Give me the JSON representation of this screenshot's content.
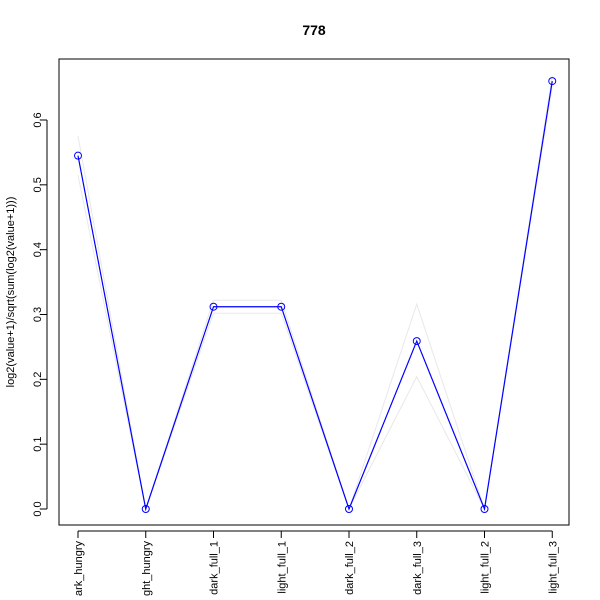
{
  "chart_data": {
    "type": "line",
    "title": "778",
    "xlabel": "",
    "ylabel": "log2(value+1)/sqrt(sum(log2(value+1)))",
    "categories": [
      "ark_hungry",
      "ght_hungry",
      "dark_full_1",
      "light_full_1",
      "dark_full_2",
      "dark_full_3",
      "light_full_2",
      "light_full_3"
    ],
    "ylim": [
      0.0,
      0.66
    ],
    "yticks": [
      0.0,
      0.1,
      0.2,
      0.3,
      0.4,
      0.5,
      0.6
    ],
    "ytick_labels": [
      "0.0",
      "0.1",
      "0.2",
      "0.3",
      "0.4",
      "0.5",
      "0.6"
    ],
    "grid": false,
    "legend": "none",
    "series": [
      {
        "values": [
          0.545,
          0.0,
          0.312,
          0.312,
          0.0,
          0.259,
          0.0,
          0.66
        ],
        "color": "#0000ff",
        "marker": "open-circle"
      }
    ],
    "bands": [
      {
        "values": [
          0.575,
          0.0,
          0.322,
          0.322,
          0.0,
          0.316,
          0.0,
          0.668
        ],
        "color": "#e8e8e8"
      },
      {
        "values": [
          0.515,
          0.0,
          0.302,
          0.302,
          0.0,
          0.204,
          0.0,
          0.652
        ],
        "color": "#e8e8e8"
      }
    ]
  }
}
